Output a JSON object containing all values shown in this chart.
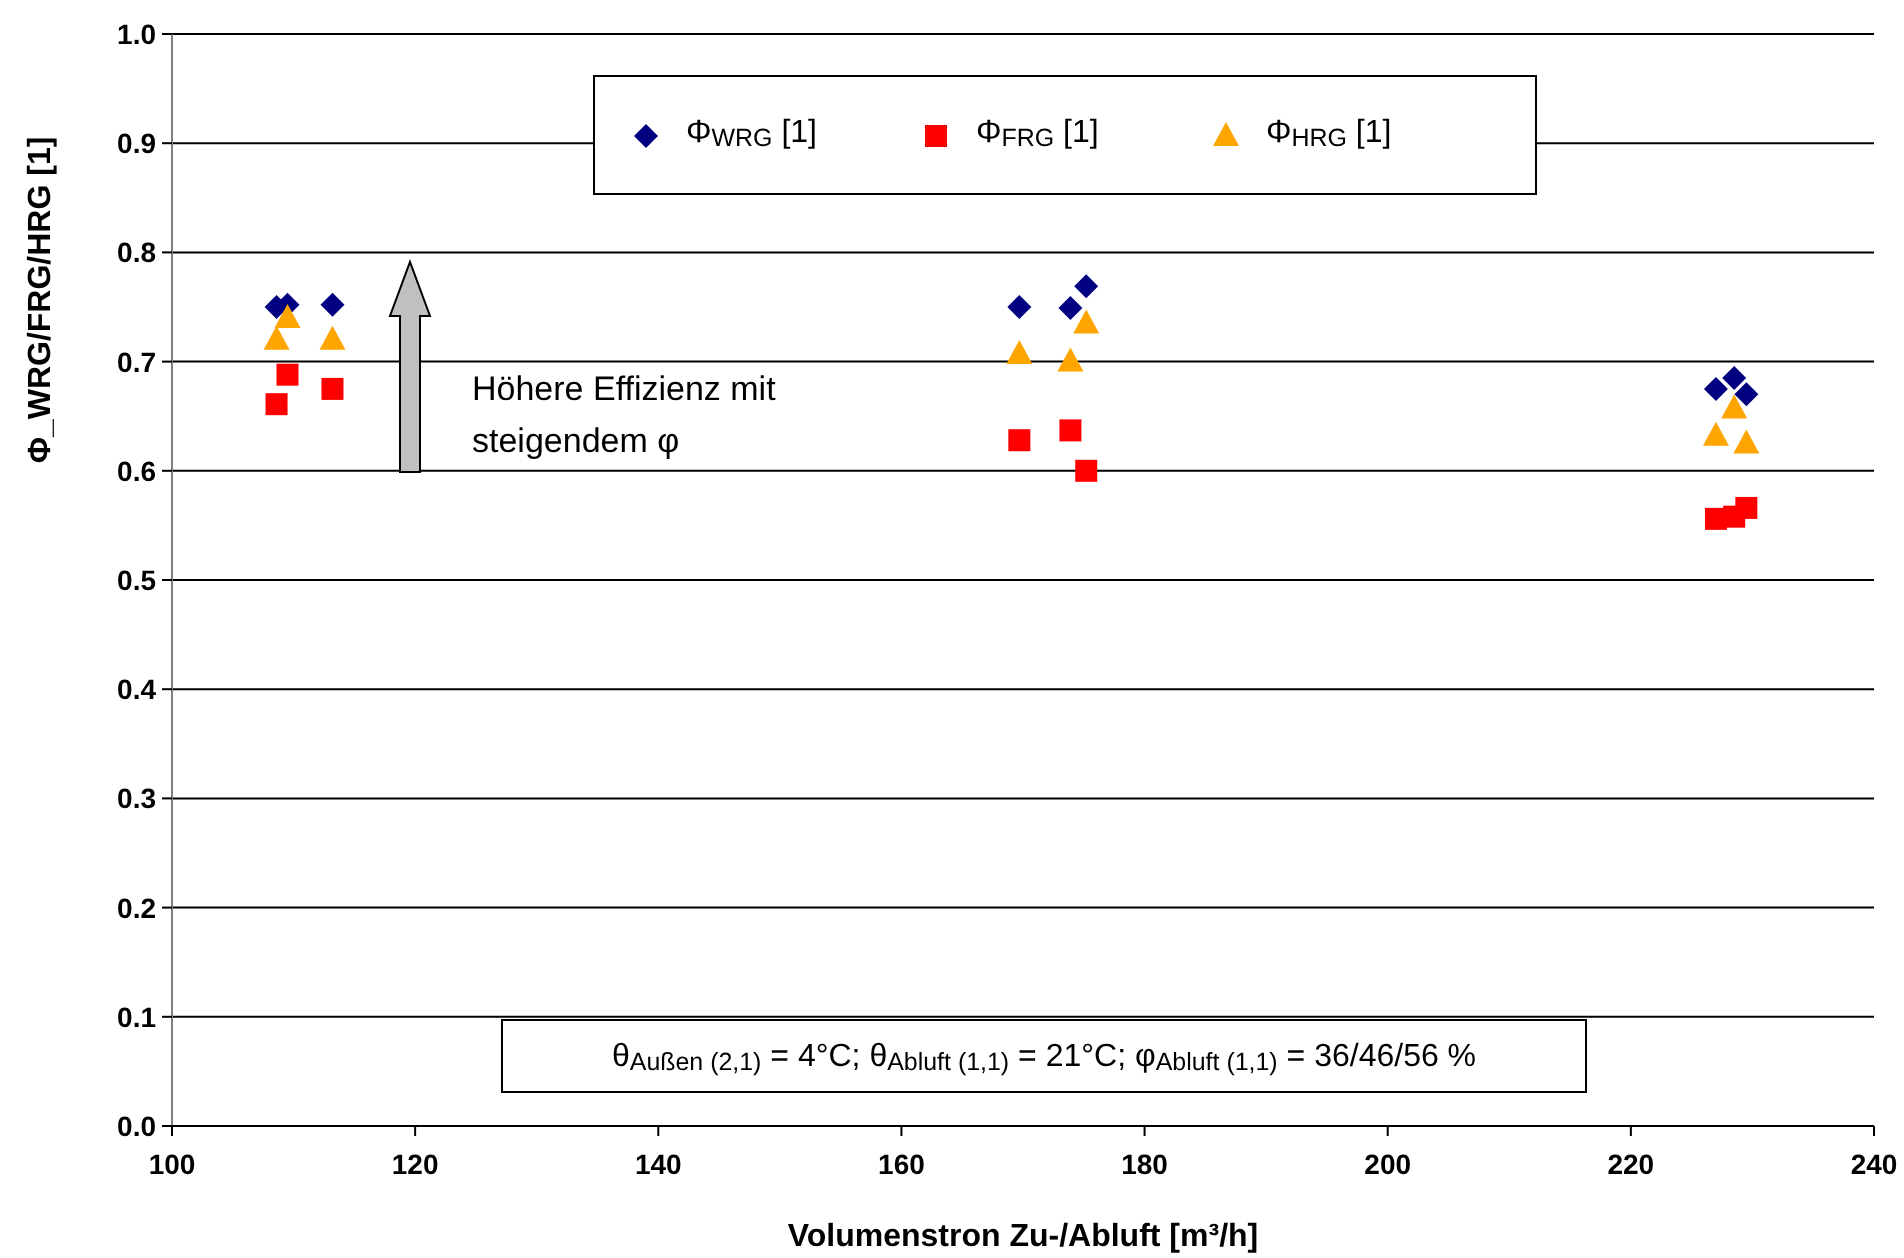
{
  "chart_data": {
    "type": "scatter",
    "xlabel": "Volumenstron Zu-/Abluft [m³/h]",
    "ylabel": "Φ_WRG/FRG/HRG [1]",
    "xlim": [
      100,
      240
    ],
    "xticks": [
      100,
      120,
      140,
      160,
      180,
      200,
      220,
      240
    ],
    "ylim": [
      0,
      1
    ],
    "yticks": [
      {
        "value": 0,
        "label": "0.0"
      },
      {
        "value": 0.1,
        "label": "0.1"
      },
      {
        "value": 0.2,
        "label": "0.2"
      },
      {
        "value": 0.3,
        "label": "0.3"
      },
      {
        "value": 0.4,
        "label": "0.4"
      },
      {
        "value": 0.5,
        "label": "0.5"
      },
      {
        "value": 0.6,
        "label": "0.6"
      },
      {
        "value": 0.7,
        "label": "0.7"
      },
      {
        "value": 0.8,
        "label": "0.8"
      },
      {
        "value": 0.9,
        "label": "0.9"
      },
      {
        "value": 1,
        "label": "1.0"
      }
    ],
    "grid": "y",
    "legend": "top",
    "series": [
      {
        "name": "Φ$_{WRG}$ [1]",
        "color": "#000080",
        "marker": "diamond",
        "x": [
          108.6,
          109.5,
          113.2,
          169.7,
          173.9,
          175.2,
          227,
          228.5,
          229.5
        ],
        "values": [
          0.75,
          0.752,
          0.752,
          0.75,
          0.749,
          0.769,
          0.675,
          0.685,
          0.67
        ]
      },
      {
        "name": "Φ$_{FRG}$ [1]",
        "color": "#ff0000",
        "marker": "square",
        "x": [
          108.6,
          109.5,
          113.2,
          169.7,
          173.9,
          175.2,
          227,
          228.5,
          229.5
        ],
        "values": [
          0.661,
          0.688,
          0.675,
          0.628,
          0.637,
          0.6,
          0.556,
          0.558,
          0.566
        ]
      },
      {
        "name": "Φ$_{HRG}$ [1]",
        "color": "#ffa500",
        "marker": "triangle",
        "x": [
          108.6,
          109.5,
          113.2,
          169.7,
          173.9,
          175.2,
          227,
          228.5,
          229.5
        ],
        "values": [
          0.72,
          0.74,
          0.72,
          0.707,
          0.7,
          0.735,
          0.632,
          0.657,
          0.625
        ]
      }
    ],
    "annotations": [
      "Höhere Effizienz mit steigendem φ",
      "θ$_{Außen (2,1)}$ = 4°C; θ$_{Abluft (1,1)}$ = 21°C; φ$_{Abluft (1,1)}$ = 36/46/56 %"
    ]
  }
}
